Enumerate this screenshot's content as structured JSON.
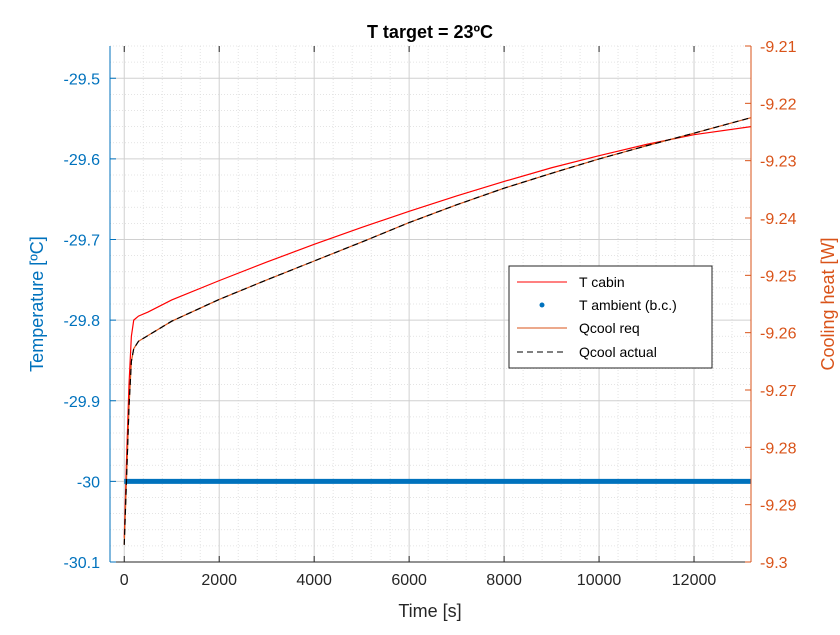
{
  "chart_data": {
    "type": "line",
    "title": "T target = 23ºC",
    "xlabel": "Time [s]",
    "ylabel_left": "Temperature [ºC]",
    "ylabel_right": "Cooling heat [W]",
    "xlim": [
      -300,
      13200
    ],
    "ylim_left": [
      -30.1,
      -29.46
    ],
    "ylim_right": [
      -9.3,
      -9.21
    ],
    "x_ticks": [
      0,
      2000,
      4000,
      6000,
      8000,
      10000,
      12000
    ],
    "x_tick_labels": [
      "0",
      "2000",
      "4000",
      "6000",
      "8000",
      "10000",
      "12000"
    ],
    "y_left_ticks": [
      -30.1,
      -30,
      -29.9,
      -29.8,
      -29.7,
      -29.6,
      -29.5
    ],
    "y_left_tick_labels": [
      "-30.1",
      "-30",
      "-29.9",
      "-29.8",
      "-29.7",
      "-29.6",
      "-29.5"
    ],
    "y_right_ticks": [
      -9.3,
      -9.29,
      -9.28,
      -9.27,
      -9.26,
      -9.25,
      -9.24,
      -9.23,
      -9.22,
      -9.21
    ],
    "y_right_tick_labels": [
      "-9.3",
      "-9.29",
      "-9.28",
      "-9.27",
      "-9.26",
      "-9.25",
      "-9.24",
      "-9.23",
      "-9.22",
      "-9.21"
    ],
    "grid": true,
    "minor_grid": true,
    "legend_position": "center-right",
    "series": [
      {
        "name": "T cabin",
        "axis": "left",
        "color": "#FF0000",
        "style": "solid",
        "x": [
          0,
          50,
          100,
          150,
          200,
          300,
          500,
          1000,
          2000,
          3000,
          4000,
          5000,
          6000,
          7000,
          8000,
          9000,
          10000,
          11000,
          12000,
          13200
        ],
        "y": [
          -30.07,
          -29.97,
          -29.88,
          -29.82,
          -29.8,
          -29.795,
          -29.79,
          -29.775,
          -29.751,
          -29.728,
          -29.706,
          -29.685,
          -29.665,
          -29.646,
          -29.628,
          -29.611,
          -29.596,
          -29.582,
          -29.57,
          -29.56
        ]
      },
      {
        "name": "T ambient (b.c.)",
        "axis": "left",
        "color": "#0072BD",
        "style": "dots",
        "x": [
          0,
          13200
        ],
        "y": [
          -30,
          -30
        ]
      },
      {
        "name": "Qcool req",
        "axis": "right",
        "color": "#D95319",
        "style": "solid",
        "x": [
          0,
          50,
          100,
          150,
          200,
          300,
          500,
          1000,
          2000,
          3000,
          4000,
          5000,
          6000,
          7000,
          8000,
          9000,
          10000,
          11000,
          12000,
          13200
        ],
        "y": [
          -9.297,
          -9.285,
          -9.273,
          -9.265,
          -9.2628,
          -9.2615,
          -9.2605,
          -9.258,
          -9.2542,
          -9.2508,
          -9.2475,
          -9.2442,
          -9.2408,
          -9.2377,
          -9.2348,
          -9.2322,
          -9.2297,
          -9.2274,
          -9.2252,
          -9.2225
        ]
      },
      {
        "name": "Qcool actual",
        "axis": "right",
        "color": "#000000",
        "style": "dashed",
        "x": [
          0,
          50,
          100,
          150,
          200,
          300,
          500,
          1000,
          2000,
          3000,
          4000,
          5000,
          6000,
          7000,
          8000,
          9000,
          10000,
          11000,
          12000,
          13200
        ],
        "y": [
          -9.297,
          -9.285,
          -9.273,
          -9.265,
          -9.2628,
          -9.2615,
          -9.2605,
          -9.258,
          -9.2542,
          -9.2508,
          -9.2475,
          -9.2442,
          -9.2408,
          -9.2377,
          -9.2348,
          -9.2322,
          -9.2297,
          -9.2274,
          -9.2252,
          -9.2225
        ]
      }
    ]
  }
}
